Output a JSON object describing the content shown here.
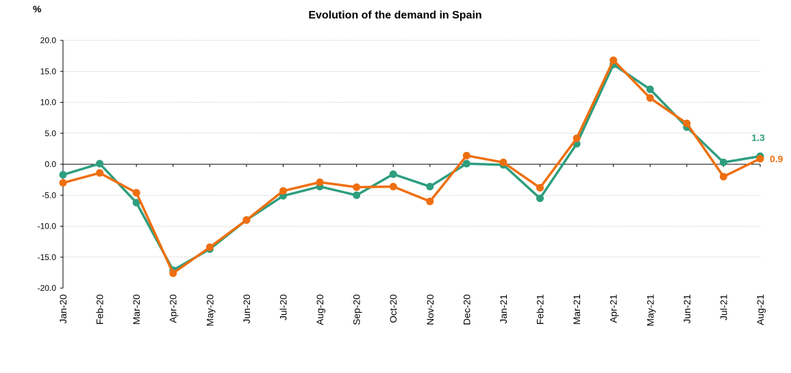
{
  "chart_data": {
    "type": "line",
    "title": "Evolution of the demand in Spain",
    "ylabel": "%",
    "xlabel": "",
    "ylim": [
      -20,
      20
    ],
    "yticks": [
      20,
      15,
      10,
      5,
      0,
      -5,
      -10,
      -15,
      -20
    ],
    "ytick_labels": [
      "20.0",
      "15.0",
      "10.0",
      "5.0",
      "0.0",
      "-5.0",
      "-10.0",
      "-15.0",
      "-20.0"
    ],
    "grid": true,
    "categories": [
      "Jan-20",
      "Feb-20",
      "Mar-20",
      "Apr-20",
      "May-20",
      "Jun-20",
      "Jul-20",
      "Aug-20",
      "Sep-20",
      "Oct-20",
      "Nov-20",
      "Dec-20",
      "Jan-21",
      "Feb-21",
      "Mar-21",
      "Apr-21",
      "May-21",
      "Jun-21",
      "Jul-21",
      "Aug-21"
    ],
    "series": [
      {
        "name": "green",
        "color": "#2e9e7f",
        "values": [
          -1.7,
          0.1,
          -6.2,
          -17.1,
          -13.7,
          -9.0,
          -5.1,
          -3.6,
          -5.0,
          -1.6,
          -3.6,
          0.1,
          -0.1,
          -5.5,
          3.3,
          16.1,
          12.1,
          6.0,
          0.3,
          1.3
        ],
        "end_label": "1.3"
      },
      {
        "name": "orange",
        "color": "#ee6f10",
        "values": [
          -3.0,
          -1.4,
          -4.6,
          -17.6,
          -13.4,
          -9.0,
          -4.3,
          -2.9,
          -3.7,
          -3.6,
          -6.0,
          1.4,
          0.3,
          -3.8,
          4.2,
          16.8,
          10.7,
          6.6,
          -2.0,
          0.9
        ],
        "end_label": "0.9"
      }
    ]
  }
}
